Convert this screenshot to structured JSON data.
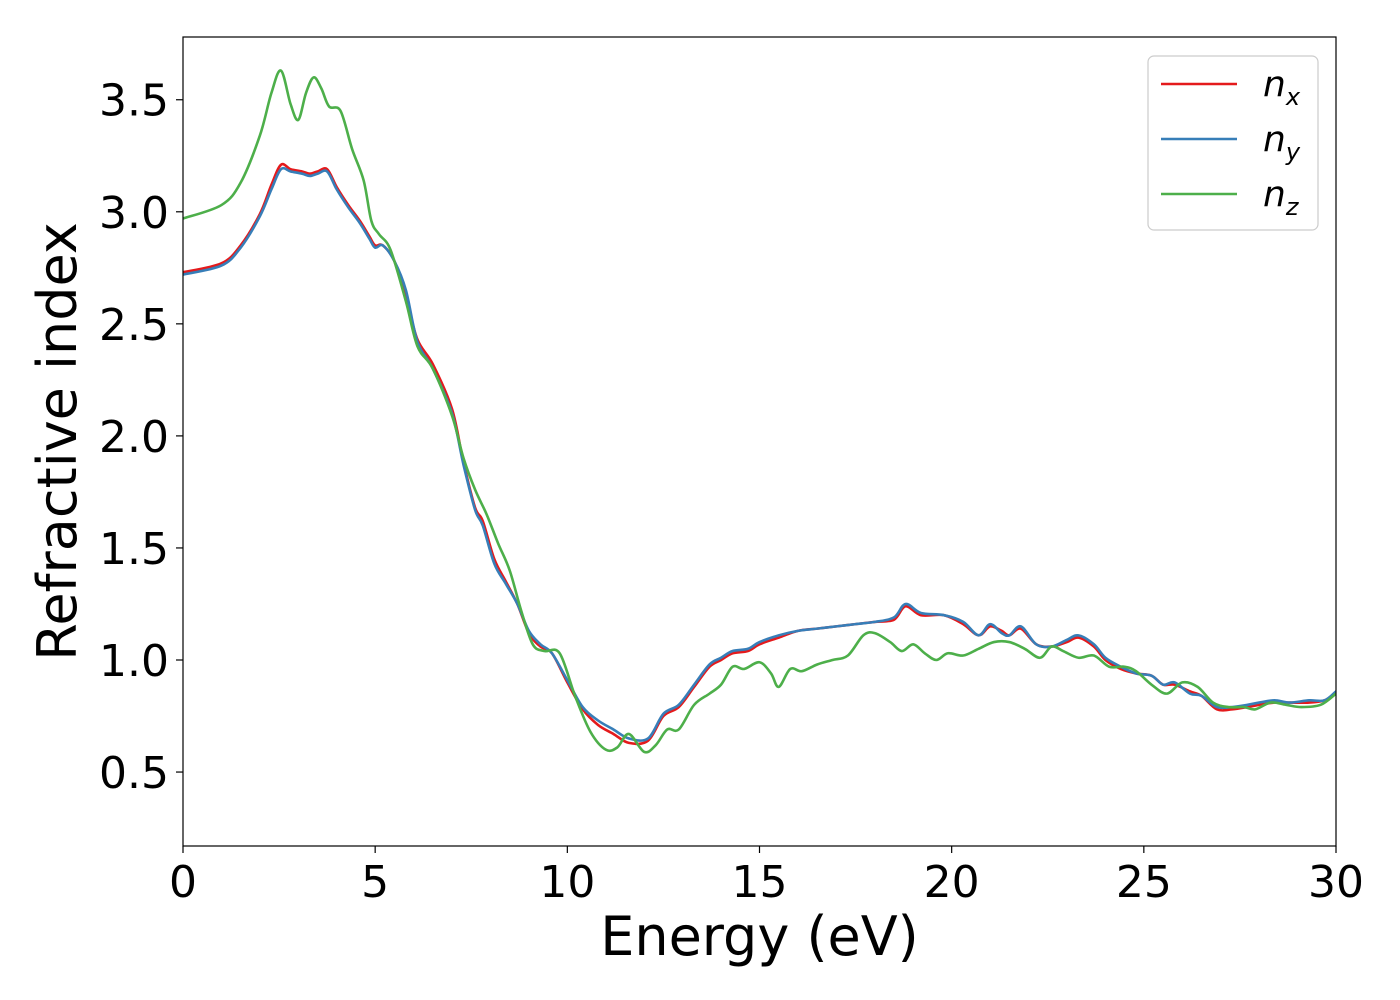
{
  "chart_data": {
    "type": "line",
    "title": "",
    "xlabel": "Energy (eV)",
    "ylabel": "Refractive index",
    "xlim": [
      0,
      30
    ],
    "ylim": [
      0.17,
      3.78
    ],
    "xticks": [
      0,
      5,
      10,
      15,
      20,
      25,
      30
    ],
    "yticks": [
      0.5,
      1.0,
      1.5,
      2.0,
      2.5,
      3.0,
      3.5
    ],
    "xtick_labels": [
      "0",
      "5",
      "10",
      "15",
      "20",
      "25",
      "30"
    ],
    "ytick_labels": [
      "0.5",
      "1.0",
      "1.5",
      "2.0",
      "2.5",
      "3.0",
      "3.5"
    ],
    "grid": false,
    "legend_position": "top-right",
    "series": [
      {
        "name": "n",
        "subscript": "x",
        "color": "#e41a1c",
        "points": [
          [
            0,
            2.73
          ],
          [
            1,
            2.77
          ],
          [
            1.5,
            2.85
          ],
          [
            2,
            2.99
          ],
          [
            2.3,
            3.12
          ],
          [
            2.55,
            3.21
          ],
          [
            2.8,
            3.19
          ],
          [
            3.1,
            3.18
          ],
          [
            3.3,
            3.17
          ],
          [
            3.5,
            3.18
          ],
          [
            3.75,
            3.19
          ],
          [
            4,
            3.11
          ],
          [
            4.3,
            3.03
          ],
          [
            4.6,
            2.96
          ],
          [
            4.85,
            2.89
          ],
          [
            5.0,
            2.85
          ],
          [
            5.2,
            2.85
          ],
          [
            5.5,
            2.78
          ],
          [
            5.8,
            2.62
          ],
          [
            6.1,
            2.43
          ],
          [
            6.5,
            2.32
          ],
          [
            7.0,
            2.12
          ],
          [
            7.3,
            1.88
          ],
          [
            7.6,
            1.68
          ],
          [
            7.8,
            1.62
          ],
          [
            8.1,
            1.45
          ],
          [
            8.4,
            1.35
          ],
          [
            8.7,
            1.25
          ],
          [
            9.0,
            1.12
          ],
          [
            9.3,
            1.06
          ],
          [
            9.6,
            1.03
          ],
          [
            10.0,
            0.9
          ],
          [
            10.4,
            0.78
          ],
          [
            10.8,
            0.71
          ],
          [
            11.2,
            0.67
          ],
          [
            11.6,
            0.63
          ],
          [
            12.1,
            0.64
          ],
          [
            12.5,
            0.75
          ],
          [
            12.9,
            0.79
          ],
          [
            13.3,
            0.88
          ],
          [
            13.7,
            0.97
          ],
          [
            14.0,
            1.0
          ],
          [
            14.3,
            1.03
          ],
          [
            14.7,
            1.04
          ],
          [
            15.0,
            1.07
          ],
          [
            15.5,
            1.1
          ],
          [
            16.0,
            1.13
          ],
          [
            16.5,
            1.14
          ],
          [
            17.0,
            1.15
          ],
          [
            17.5,
            1.16
          ],
          [
            18.0,
            1.17
          ],
          [
            18.5,
            1.18
          ],
          [
            18.8,
            1.24
          ],
          [
            19.2,
            1.2
          ],
          [
            19.8,
            1.2
          ],
          [
            20.3,
            1.16
          ],
          [
            20.7,
            1.11
          ],
          [
            21.0,
            1.15
          ],
          [
            21.3,
            1.13
          ],
          [
            21.5,
            1.11
          ],
          [
            21.8,
            1.14
          ],
          [
            22.2,
            1.07
          ],
          [
            22.6,
            1.06
          ],
          [
            23.0,
            1.08
          ],
          [
            23.3,
            1.1
          ],
          [
            23.7,
            1.06
          ],
          [
            24.0,
            1.0
          ],
          [
            24.4,
            0.96
          ],
          [
            24.8,
            0.94
          ],
          [
            25.2,
            0.93
          ],
          [
            25.5,
            0.89
          ],
          [
            25.8,
            0.89
          ],
          [
            26.2,
            0.86
          ],
          [
            26.5,
            0.84
          ],
          [
            26.9,
            0.78
          ],
          [
            27.3,
            0.78
          ],
          [
            27.7,
            0.79
          ],
          [
            28.0,
            0.8
          ],
          [
            28.4,
            0.81
          ],
          [
            28.8,
            0.81
          ],
          [
            29.3,
            0.81
          ],
          [
            29.7,
            0.82
          ],
          [
            30,
            0.85
          ]
        ]
      },
      {
        "name": "n",
        "subscript": "y",
        "color": "#377eb8",
        "points": [
          [
            0,
            2.72
          ],
          [
            1,
            2.76
          ],
          [
            1.5,
            2.84
          ],
          [
            2,
            2.98
          ],
          [
            2.3,
            3.1
          ],
          [
            2.55,
            3.19
          ],
          [
            2.8,
            3.18
          ],
          [
            3.1,
            3.17
          ],
          [
            3.3,
            3.16
          ],
          [
            3.5,
            3.17
          ],
          [
            3.75,
            3.18
          ],
          [
            4,
            3.1
          ],
          [
            4.3,
            3.02
          ],
          [
            4.6,
            2.95
          ],
          [
            4.85,
            2.88
          ],
          [
            5.0,
            2.84
          ],
          [
            5.2,
            2.85
          ],
          [
            5.5,
            2.78
          ],
          [
            5.8,
            2.65
          ],
          [
            6.1,
            2.42
          ],
          [
            6.5,
            2.3
          ],
          [
            7.0,
            2.1
          ],
          [
            7.3,
            1.87
          ],
          [
            7.6,
            1.67
          ],
          [
            7.8,
            1.6
          ],
          [
            8.1,
            1.43
          ],
          [
            8.4,
            1.34
          ],
          [
            8.7,
            1.25
          ],
          [
            9.0,
            1.13
          ],
          [
            9.3,
            1.07
          ],
          [
            9.6,
            1.03
          ],
          [
            10.0,
            0.91
          ],
          [
            10.4,
            0.79
          ],
          [
            10.8,
            0.73
          ],
          [
            11.2,
            0.69
          ],
          [
            11.6,
            0.65
          ],
          [
            12.1,
            0.65
          ],
          [
            12.5,
            0.76
          ],
          [
            12.9,
            0.8
          ],
          [
            13.3,
            0.89
          ],
          [
            13.7,
            0.98
          ],
          [
            14.0,
            1.01
          ],
          [
            14.3,
            1.04
          ],
          [
            14.7,
            1.05
          ],
          [
            15.0,
            1.08
          ],
          [
            15.5,
            1.11
          ],
          [
            16.0,
            1.13
          ],
          [
            16.5,
            1.14
          ],
          [
            17.0,
            1.15
          ],
          [
            17.5,
            1.16
          ],
          [
            18.0,
            1.17
          ],
          [
            18.5,
            1.19
          ],
          [
            18.8,
            1.25
          ],
          [
            19.2,
            1.21
          ],
          [
            19.8,
            1.2
          ],
          [
            20.3,
            1.17
          ],
          [
            20.7,
            1.11
          ],
          [
            21.0,
            1.16
          ],
          [
            21.3,
            1.12
          ],
          [
            21.5,
            1.11
          ],
          [
            21.8,
            1.15
          ],
          [
            22.2,
            1.07
          ],
          [
            22.6,
            1.06
          ],
          [
            23.0,
            1.09
          ],
          [
            23.3,
            1.11
          ],
          [
            23.7,
            1.07
          ],
          [
            24.0,
            1.01
          ],
          [
            24.4,
            0.97
          ],
          [
            24.8,
            0.94
          ],
          [
            25.2,
            0.93
          ],
          [
            25.5,
            0.89
          ],
          [
            25.8,
            0.9
          ],
          [
            26.2,
            0.85
          ],
          [
            26.5,
            0.84
          ],
          [
            26.9,
            0.79
          ],
          [
            27.3,
            0.79
          ],
          [
            27.7,
            0.8
          ],
          [
            28.0,
            0.81
          ],
          [
            28.4,
            0.82
          ],
          [
            28.8,
            0.81
          ],
          [
            29.3,
            0.82
          ],
          [
            29.7,
            0.82
          ],
          [
            30,
            0.86
          ]
        ]
      },
      {
        "name": "n",
        "subscript": "z",
        "color": "#4daf4a",
        "points": [
          [
            0,
            2.97
          ],
          [
            1,
            3.03
          ],
          [
            1.5,
            3.13
          ],
          [
            2,
            3.34
          ],
          [
            2.3,
            3.53
          ],
          [
            2.55,
            3.63
          ],
          [
            2.8,
            3.48
          ],
          [
            3.0,
            3.41
          ],
          [
            3.2,
            3.53
          ],
          [
            3.4,
            3.6
          ],
          [
            3.6,
            3.55
          ],
          [
            3.8,
            3.47
          ],
          [
            4.1,
            3.45
          ],
          [
            4.4,
            3.28
          ],
          [
            4.7,
            3.14
          ],
          [
            4.9,
            2.96
          ],
          [
            5.1,
            2.9
          ],
          [
            5.4,
            2.83
          ],
          [
            5.8,
            2.6
          ],
          [
            6.1,
            2.4
          ],
          [
            6.5,
            2.3
          ],
          [
            7.0,
            2.09
          ],
          [
            7.3,
            1.9
          ],
          [
            7.6,
            1.76
          ],
          [
            7.9,
            1.65
          ],
          [
            8.2,
            1.52
          ],
          [
            8.5,
            1.4
          ],
          [
            8.8,
            1.22
          ],
          [
            9.1,
            1.07
          ],
          [
            9.4,
            1.04
          ],
          [
            9.8,
            1.03
          ],
          [
            10.2,
            0.84
          ],
          [
            10.6,
            0.68
          ],
          [
            11.0,
            0.6
          ],
          [
            11.3,
            0.61
          ],
          [
            11.6,
            0.67
          ],
          [
            12.0,
            0.59
          ],
          [
            12.3,
            0.62
          ],
          [
            12.6,
            0.69
          ],
          [
            12.9,
            0.69
          ],
          [
            13.3,
            0.8
          ],
          [
            13.7,
            0.85
          ],
          [
            14.0,
            0.89
          ],
          [
            14.3,
            0.97
          ],
          [
            14.6,
            0.96
          ],
          [
            15.0,
            0.99
          ],
          [
            15.3,
            0.94
          ],
          [
            15.5,
            0.88
          ],
          [
            15.8,
            0.96
          ],
          [
            16.1,
            0.95
          ],
          [
            16.5,
            0.98
          ],
          [
            16.9,
            1.0
          ],
          [
            17.3,
            1.02
          ],
          [
            17.7,
            1.11
          ],
          [
            18.0,
            1.12
          ],
          [
            18.4,
            1.08
          ],
          [
            18.7,
            1.04
          ],
          [
            19.0,
            1.07
          ],
          [
            19.3,
            1.03
          ],
          [
            19.6,
            1.0
          ],
          [
            19.9,
            1.03
          ],
          [
            20.3,
            1.02
          ],
          [
            20.7,
            1.05
          ],
          [
            21.1,
            1.08
          ],
          [
            21.5,
            1.08
          ],
          [
            21.9,
            1.05
          ],
          [
            22.3,
            1.01
          ],
          [
            22.6,
            1.06
          ],
          [
            22.9,
            1.04
          ],
          [
            23.3,
            1.01
          ],
          [
            23.7,
            1.02
          ],
          [
            24.1,
            0.97
          ],
          [
            24.5,
            0.97
          ],
          [
            24.8,
            0.95
          ],
          [
            25.2,
            0.89
          ],
          [
            25.6,
            0.85
          ],
          [
            26.0,
            0.9
          ],
          [
            26.4,
            0.88
          ],
          [
            26.8,
            0.81
          ],
          [
            27.2,
            0.79
          ],
          [
            27.6,
            0.79
          ],
          [
            27.9,
            0.78
          ],
          [
            28.3,
            0.81
          ],
          [
            28.7,
            0.8
          ],
          [
            29.1,
            0.79
          ],
          [
            29.6,
            0.8
          ],
          [
            30,
            0.85
          ]
        ]
      }
    ]
  }
}
